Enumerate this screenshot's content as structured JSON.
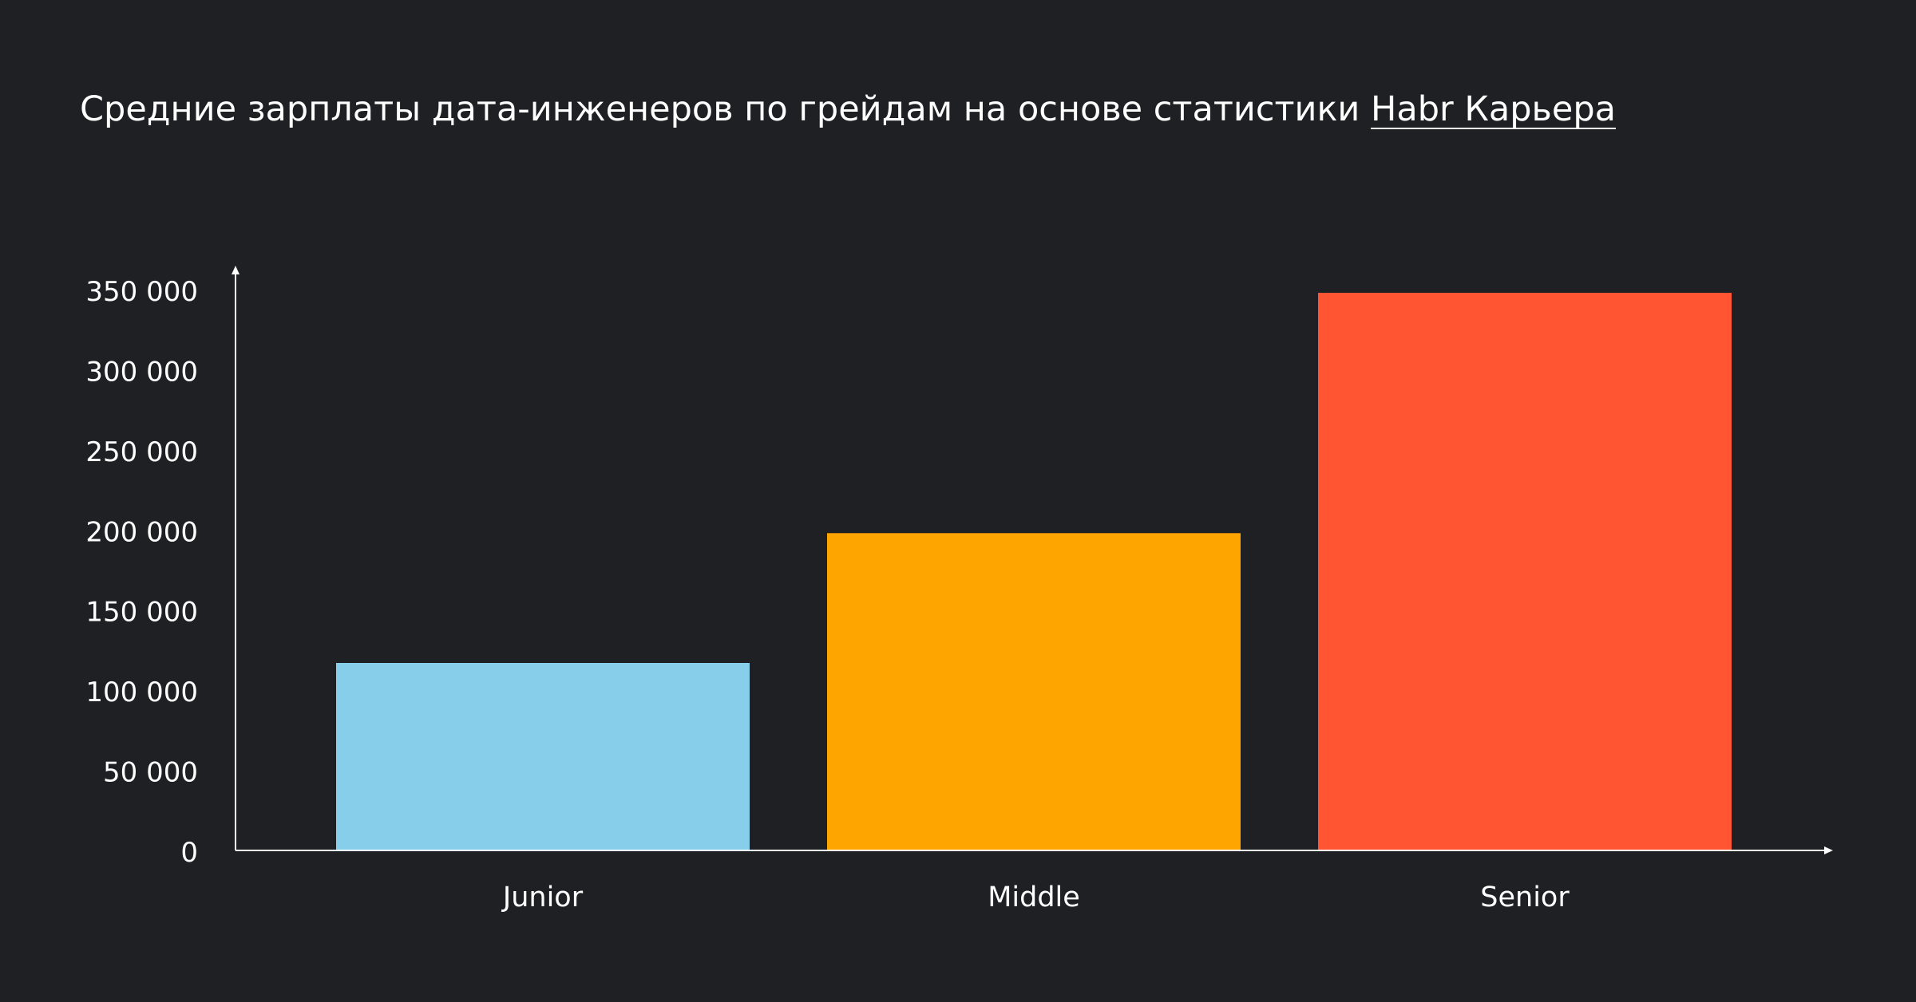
{
  "chart_data": {
    "type": "bar",
    "title": "Средние зарплаты дата-инженеров по грейдам на основе статистики",
    "title_link": "Habr Карьера",
    "xlabel": "",
    "ylabel": "",
    "categories": [
      "Junior",
      "Middle",
      "Senior"
    ],
    "values": [
      117000,
      198000,
      348000
    ],
    "ylim": [
      0,
      360000
    ],
    "yticks": [
      0,
      50000,
      100000,
      150000,
      200000,
      250000,
      300000,
      350000
    ],
    "ytick_labels": [
      "0",
      "50 000",
      "100 000",
      "150 000",
      "200 000",
      "250 000",
      "300 000",
      "350 000"
    ],
    "colors": [
      "#87ceeb",
      "#ffa500",
      "#ff5533"
    ],
    "grid": false,
    "legend": "none"
  },
  "colors": {
    "background": "#1f2024",
    "text": "#ffffff",
    "axis": "#ffffff"
  }
}
